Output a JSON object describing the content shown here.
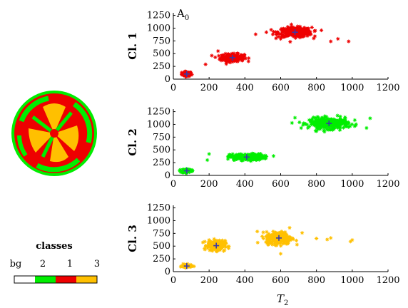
{
  "figure": {
    "panel_tag": "A",
    "panel_tag_sub": "0",
    "x_label": "T",
    "x_label_sub": "2"
  },
  "legend": {
    "title": "classes",
    "labels": [
      "bg",
      "2",
      "1",
      "3"
    ],
    "colors": [
      "#ffffff",
      "#00ee00",
      "#ee0000",
      "#ffc000"
    ]
  },
  "disk": {
    "description_colors": {
      "background": "#00ee00",
      "class1": "#ee0000",
      "class3": "#ffc000"
    }
  },
  "chart_data": [
    {
      "type": "scatter",
      "ylabel": "Cl. 1",
      "color": "#ee0000",
      "marker": "asterisk",
      "centroid_marker": "+",
      "centroid_color": "#3a3aa8",
      "xlim": [
        0,
        1200
      ],
      "ylim": [
        0,
        1300
      ],
      "xticks": [
        0,
        200,
        400,
        600,
        800,
        1000,
        1200
      ],
      "yticks": [
        0,
        250,
        500,
        750,
        1000,
        1250
      ],
      "clusters": [
        {
          "cx": 75,
          "cy": 100,
          "sx": 25,
          "sy": 40,
          "n": 90
        },
        {
          "cx": 330,
          "cy": 420,
          "sx": 60,
          "sy": 65,
          "n": 220
        },
        {
          "cx": 680,
          "cy": 920,
          "sx": 85,
          "sy": 85,
          "n": 320
        }
      ],
      "centroids": [
        [
          75,
          100
        ],
        [
          330,
          420
        ],
        [
          680,
          920
        ]
      ],
      "outliers": [
        [
          180,
          290
        ],
        [
          460,
          880
        ],
        [
          520,
          920
        ],
        [
          600,
          790
        ],
        [
          880,
          740
        ],
        [
          920,
          790
        ],
        [
          980,
          740
        ],
        [
          250,
          550
        ],
        [
          560,
          930
        ]
      ]
    },
    {
      "type": "scatter",
      "ylabel": "Cl. 2",
      "color": "#00ee00",
      "marker": "asterisk",
      "centroid_marker": "+",
      "centroid_color": "#3a3aa8",
      "xlim": [
        0,
        1200
      ],
      "ylim": [
        0,
        1300
      ],
      "xticks": [
        0,
        200,
        400,
        600,
        800,
        1000,
        1200
      ],
      "yticks": [
        0,
        250,
        500,
        750,
        1000,
        1250
      ],
      "clusters": [
        {
          "cx": 75,
          "cy": 90,
          "sx": 25,
          "sy": 35,
          "n": 90
        },
        {
          "cx": 410,
          "cy": 360,
          "sx": 85,
          "sy": 55,
          "n": 250
        },
        {
          "cx": 870,
          "cy": 1020,
          "sx": 100,
          "sy": 95,
          "n": 340
        }
      ],
      "centroids": [
        [
          75,
          90
        ],
        [
          410,
          360
        ],
        [
          870,
          1020
        ]
      ],
      "outliers": [
        [
          190,
          300
        ],
        [
          200,
          420
        ],
        [
          560,
          380
        ],
        [
          1100,
          1120
        ],
        [
          680,
          1130
        ],
        [
          1080,
          930
        ]
      ]
    },
    {
      "type": "scatter",
      "ylabel": "Cl. 3",
      "color": "#ffc000",
      "marker": "asterisk",
      "centroid_marker": "+",
      "centroid_color": "#3a3aa8",
      "xlim": [
        0,
        1200
      ],
      "ylim": [
        0,
        1300
      ],
      "xticks": [
        0,
        200,
        400,
        600,
        800,
        1000,
        1200
      ],
      "yticks": [
        0,
        250,
        500,
        750,
        1000,
        1250
      ],
      "clusters": [
        {
          "cx": 75,
          "cy": 110,
          "sx": 25,
          "sy": 30,
          "n": 70
        },
        {
          "cx": 240,
          "cy": 510,
          "sx": 45,
          "sy": 90,
          "n": 200
        },
        {
          "cx": 590,
          "cy": 660,
          "sx": 65,
          "sy": 110,
          "n": 280
        }
      ],
      "centroids": [
        [
          75,
          110
        ],
        [
          240,
          510
        ],
        [
          590,
          660
        ]
      ],
      "outliers": [
        [
          600,
          350
        ],
        [
          1000,
          620
        ],
        [
          990,
          590
        ],
        [
          860,
          630
        ],
        [
          800,
          650
        ],
        [
          720,
          760
        ],
        [
          650,
          860
        ],
        [
          200,
          620
        ],
        [
          880,
          660
        ]
      ]
    }
  ]
}
